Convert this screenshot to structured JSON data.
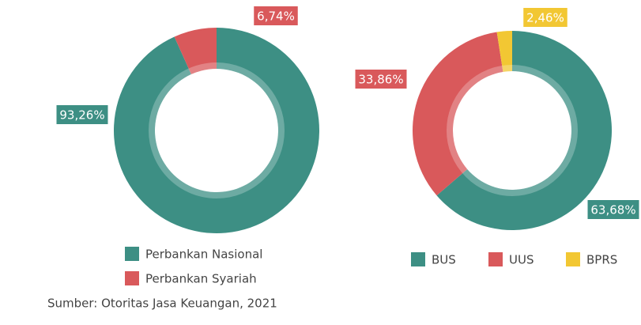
{
  "chart_data": [
    {
      "type": "pie",
      "donut": true,
      "categories": [
        "Perbankan Nasional",
        "Perbankan Syariah"
      ],
      "values": [
        93.26,
        6.74
      ],
      "value_labels": [
        "93,26%",
        "6,74%"
      ],
      "colors": [
        "#3d8f84",
        "#d9595b"
      ]
    },
    {
      "type": "pie",
      "donut": true,
      "categories": [
        "BUS",
        "UUS",
        "BPRS"
      ],
      "values": [
        63.68,
        33.86,
        2.46
      ],
      "value_labels": [
        "63,68%",
        "33,86%",
        "2,46%"
      ],
      "colors": [
        "#3d8f84",
        "#d9595b",
        "#f2c733"
      ]
    }
  ],
  "source": "Sumber: Otoritas Jasa Keuangan, 2021"
}
